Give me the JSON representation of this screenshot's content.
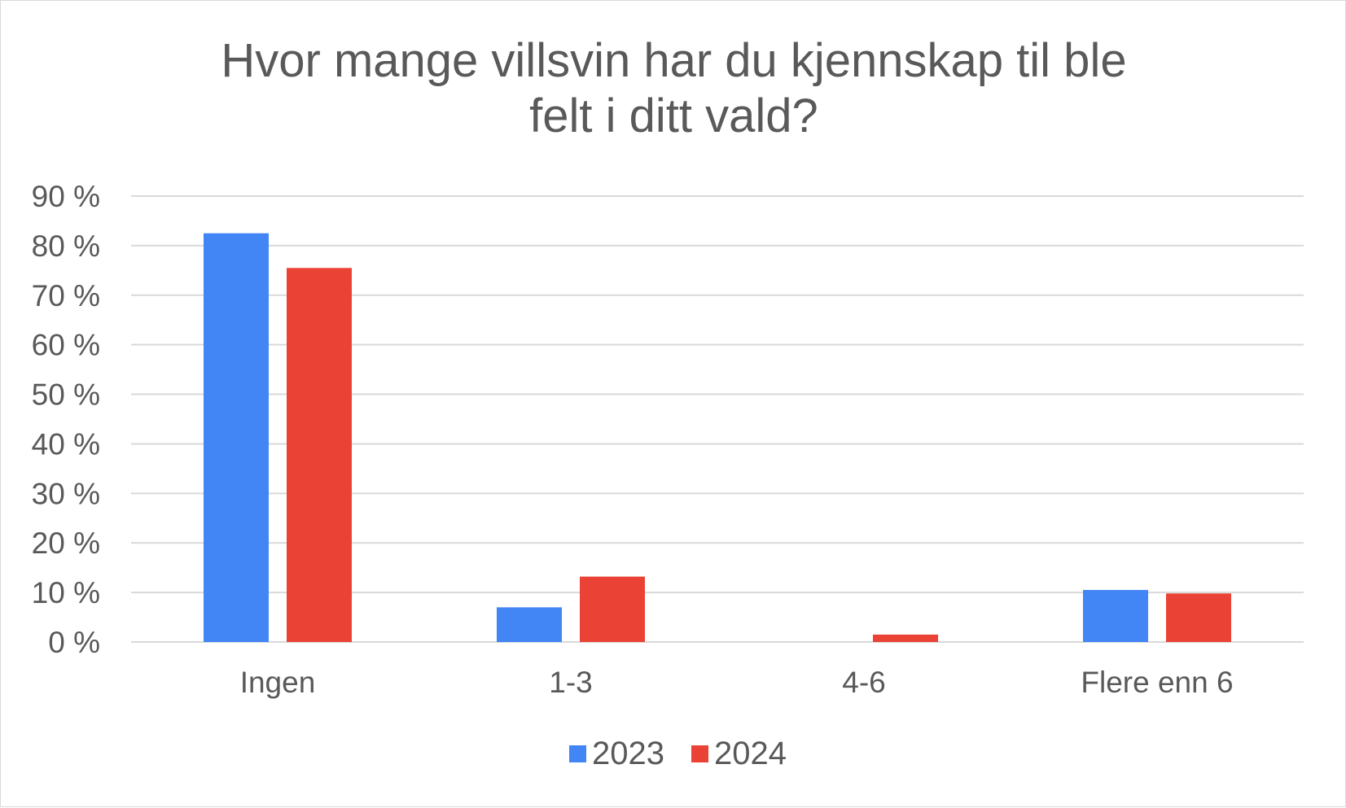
{
  "chart_data": {
    "type": "bar",
    "title_lines": [
      "Hvor mange villsvin har du kjennskap til ble",
      "felt i ditt vald?"
    ],
    "categories": [
      "Ingen",
      "1-3",
      "4-6",
      "Flere enn 6"
    ],
    "series": [
      {
        "name": "2023",
        "color": "#4285f4",
        "values": [
          82.5,
          7,
          0,
          10.5
        ]
      },
      {
        "name": "2024",
        "color": "#ea4335",
        "values": [
          75.5,
          13.2,
          1.5,
          9.8
        ]
      }
    ],
    "ylim": [
      0,
      90
    ],
    "ytick_step": 10,
    "ytick_labels": [
      "0 %",
      "10 %",
      "20 %",
      "30 %",
      "40 %",
      "50 %",
      "60 %",
      "70 %",
      "80 %",
      "90 %"
    ],
    "xlabel": "",
    "ylabel": "",
    "grid": true,
    "legend_position": "bottom",
    "gridline_color": "#d9d9d9"
  }
}
